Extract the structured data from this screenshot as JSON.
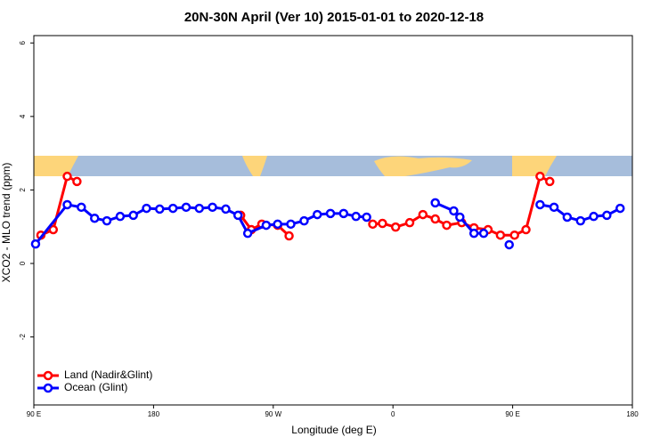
{
  "chart_data": {
    "type": "line",
    "title": "20N-30N April (Ver 10)   2015-01-01 to 2020-12-18",
    "x_label": "Longitude (deg E)",
    "y_label": "XCO2 - MLO trend (ppm)",
    "xlim": [
      90,
      540
    ],
    "xticks": [
      {
        "value": 90,
        "label": "90 E"
      },
      180,
      {
        "value": 270,
        "label": "90 W"
      },
      {
        "value": 360,
        "label": "0"
      },
      {
        "value": 450,
        "label": "90 E"
      },
      {
        "value": 540,
        "label": "180"
      }
    ],
    "ylim": [
      -3.85,
      6.2
    ],
    "yticks": [
      -2,
      0,
      2,
      4,
      6
    ],
    "legend": "bottom-left",
    "series": [
      {
        "name": "Land (Nadir&Glint)",
        "color": "#ff0000",
        "x": [
          95.3,
          104.6,
          115.1,
          122.4,
          null,
          245.5,
          253.5,
          261.4,
          273.3,
          281.9,
          null,
          344.8,
          352.1,
          362.0,
          372.6,
          382.5,
          391.8,
          400.4,
          411.7,
          420.9,
          431.5,
          440.8,
          451.4,
          460.0,
          470.6,
          477.9
        ],
        "values": [
          0.77,
          0.92,
          2.37,
          2.23,
          null,
          1.31,
          0.92,
          1.07,
          1.04,
          0.75,
          null,
          1.07,
          1.09,
          0.99,
          1.11,
          1.33,
          1.21,
          1.04,
          1.11,
          0.97,
          0.92,
          0.77,
          0.77,
          0.92,
          2.37,
          2.23
        ]
      },
      {
        "name": "Ocean (Glint)",
        "color": "#0000ff",
        "x": [
          91.3,
          115.1,
          125.7,
          135.7,
          144.9,
          154.9,
          164.8,
          174.7,
          184.6,
          194.6,
          204.5,
          214.4,
          224.3,
          234.3,
          243.5,
          250.8,
          264.7,
          273.3,
          283.2,
          293.2,
          303.1,
          313.0,
          322.9,
          332.2,
          340.2,
          null,
          391.8,
          405.7,
          410.3,
          420.9,
          428.2,
          null,
          447.4,
          null,
          470.6,
          481.1,
          491.0,
          501.0,
          510.9,
          520.8,
          530.8
        ],
        "values": [
          0.53,
          1.6,
          1.53,
          1.23,
          1.16,
          1.28,
          1.31,
          1.5,
          1.48,
          1.5,
          1.53,
          1.5,
          1.53,
          1.48,
          1.31,
          0.82,
          1.04,
          1.07,
          1.07,
          1.16,
          1.33,
          1.36,
          1.36,
          1.28,
          1.26,
          null,
          1.65,
          1.43,
          1.26,
          0.82,
          0.82,
          null,
          0.51,
          null,
          1.6,
          1.53,
          1.26,
          1.16,
          1.28,
          1.31,
          1.5
        ]
      }
    ]
  }
}
